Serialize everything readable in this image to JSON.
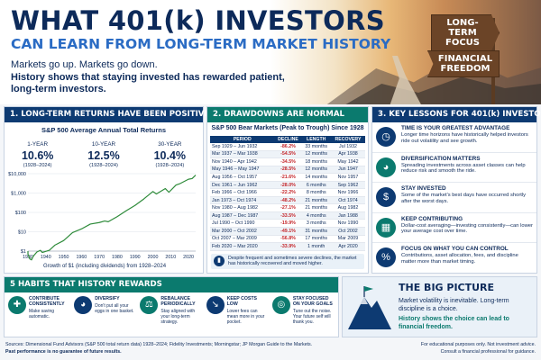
{
  "header": {
    "title": "WHAT 401(k) INVESTORS",
    "subtitle": "CAN LEARN FROM LONG-TERM MARKET HISTORY",
    "intro_line1": "Markets go up. Markets go down.",
    "intro_line2": "History shows that staying invested has rewarded patient, long-term investors.",
    "sign_top": "LONG-TERM FOCUS",
    "sign_bottom": "FINANCIAL FREEDOM"
  },
  "panel1": {
    "heading": "1. LONG-TERM RETURNS HAVE BEEN POSITIVE",
    "chart_title": "S&P 500 Average Annual Total Returns",
    "stats": [
      {
        "label": "1-YEAR",
        "value": "10.6%",
        "range": "(1928–2024)"
      },
      {
        "label": "10-YEAR",
        "value": "12.5%",
        "range": "(1928–2024)"
      },
      {
        "label": "30-YEAR",
        "value": "10.4%",
        "range": "(1928–2024)"
      }
    ],
    "footnote": "Growth of $1 (including dividends) from 1928–2024"
  },
  "chart_data": {
    "type": "line",
    "title": "",
    "xlabel": "",
    "ylabel": "",
    "log_scale": true,
    "xlim": [
      1930,
      2024
    ],
    "ylim": [
      1,
      10000
    ],
    "x_ticks": [
      "1930",
      "1940",
      "1950",
      "1960",
      "1970",
      "1980",
      "1990",
      "2000",
      "2010",
      "2020"
    ],
    "y_ticks": [
      "$1",
      "$10",
      "$100",
      "$1,000",
      "$10,000"
    ],
    "x": [
      1928,
      1929,
      1930,
      1931,
      1932,
      1933,
      1935,
      1937,
      1938,
      1942,
      1945,
      1950,
      1955,
      1960,
      1965,
      1970,
      1973,
      1975,
      1980,
      1985,
      1990,
      1995,
      2000,
      2002,
      2007,
      2009,
      2013,
      2015,
      2020,
      2022,
      2024
    ],
    "y": [
      1.0,
      0.9,
      0.7,
      0.4,
      0.35,
      0.55,
      0.9,
      1.1,
      0.85,
      1.1,
      2.0,
      3.5,
      9.0,
      14,
      25,
      30,
      36,
      33,
      60,
      120,
      230,
      500,
      1200,
      900,
      1700,
      1100,
      2600,
      3000,
      5200,
      5600,
      8500
    ],
    "color": "#2e8b3a",
    "grid": true
  },
  "panel2": {
    "heading": "2. DRAWDOWNS ARE NORMAL",
    "table_title": "S&P 500 Bear Markets (Peak to Trough) Since 1928",
    "columns": [
      "PERIOD",
      "DECLINE",
      "LENGTH",
      "RECOVERY"
    ],
    "rows": [
      {
        "period": "Sep 1929 – Jun 1932",
        "decline": "-86.2%",
        "length": "33 months",
        "recovery": "Jul 1932"
      },
      {
        "period": "Mar 1937 – Mar 1938",
        "decline": "-54.5%",
        "length": "12 months",
        "recovery": "Apr 1938"
      },
      {
        "period": "Nov 1940 – Apr 1942",
        "decline": "-34.5%",
        "length": "18 months",
        "recovery": "May 1942"
      },
      {
        "period": "May 1946 – May 1947",
        "decline": "-28.5%",
        "length": "12 months",
        "recovery": "Jun 1947"
      },
      {
        "period": "Aug 1956 – Oct 1957",
        "decline": "-21.6%",
        "length": "14 months",
        "recovery": "Nov 1957"
      },
      {
        "period": "Dec 1961 – Jun 1962",
        "decline": "-28.0%",
        "length": "6 months",
        "recovery": "Sep 1962"
      },
      {
        "period": "Feb 1966 – Oct 1966",
        "decline": "-22.2%",
        "length": "8 months",
        "recovery": "Nov 1966"
      },
      {
        "period": "Jan 1973 – Oct 1974",
        "decline": "-48.2%",
        "length": "21 months",
        "recovery": "Oct 1974"
      },
      {
        "period": "Nov 1980 – Aug 1982",
        "decline": "-27.1%",
        "length": "21 months",
        "recovery": "Aug 1982"
      },
      {
        "period": "Aug 1987 – Dec 1987",
        "decline": "-33.5%",
        "length": "4 months",
        "recovery": "Jan 1988"
      },
      {
        "period": "Jul 1990 – Oct 1990",
        "decline": "-19.9%",
        "length": "3 months",
        "recovery": "Nov 1990"
      },
      {
        "period": "Mar 2000 – Oct 2002",
        "decline": "-49.1%",
        "length": "31 months",
        "recovery": "Oct 2002"
      },
      {
        "period": "Oct 2007 – Mar 2009",
        "decline": "-56.8%",
        "length": "17 months",
        "recovery": "Mar 2009"
      },
      {
        "period": "Feb 2020 – Mar 2020",
        "decline": "-33.9%",
        "length": "1 month",
        "recovery": "Apr 2020"
      }
    ],
    "note": "Despite frequent and sometimes severe declines, the market has historically recovered and moved higher."
  },
  "panel3": {
    "heading": "3. KEY LESSONS FOR 401(k) INVESTORS",
    "lessons": [
      {
        "title": "TIME IS YOUR GREATEST ADVANTAGE",
        "body": "Longer time horizons have historically helped investors ride out volatility and see growth.",
        "icon": "clock-icon",
        "color": "#0d3a72",
        "glyph": "◷"
      },
      {
        "title": "DIVERSIFICATION MATTERS",
        "body": "Spreading investments across asset classes can help reduce risk and smooth the ride.",
        "icon": "pie-chart-icon",
        "color": "#0b7a6e",
        "glyph": "◕"
      },
      {
        "title": "STAY INVESTED",
        "body": "Some of the market's best days have occurred shortly after the worst days.",
        "icon": "dollar-icon",
        "color": "#0d3a72",
        "glyph": "$"
      },
      {
        "title": "KEEP CONTRIBUTING",
        "body": "Dollar-cost averaging—investing consistently—can lower your average cost over time.",
        "icon": "calendar-dollar-icon",
        "color": "#0b7a6e",
        "glyph": "▦"
      },
      {
        "title": "FOCUS ON WHAT YOU CAN CONTROL",
        "body": "Contributions, asset allocation, fees, and discipline matter more than market timing.",
        "icon": "percent-icon",
        "color": "#0d3a72",
        "glyph": "%"
      }
    ]
  },
  "habits": {
    "heading": "5 HABITS THAT HISTORY REWARDS",
    "items": [
      {
        "title": "CONTRIBUTE CONSISTENTLY",
        "body": "Make saving automatic.",
        "icon": "piggy-bank-icon",
        "color": "#0b7a6e",
        "glyph": "✚"
      },
      {
        "title": "DIVERSIFY",
        "body": "Don't put all your eggs in one basket.",
        "icon": "pie-chart-icon",
        "color": "#0d3a72",
        "glyph": "◕"
      },
      {
        "title": "REBALANCE PERIODICALLY",
        "body": "Stay aligned with your long-term strategy.",
        "icon": "scale-icon",
        "color": "#0b7a6e",
        "glyph": "⚖"
      },
      {
        "title": "KEEP COSTS LOW",
        "body": "Lower fees can mean more in your pocket.",
        "icon": "down-trend-icon",
        "color": "#0d3a72",
        "glyph": "↘"
      },
      {
        "title": "STAY FOCUSED ON YOUR GOALS",
        "body": "Tune out the noise. Your future self will thank you.",
        "icon": "target-icon",
        "color": "#0b7a6e",
        "glyph": "◎"
      }
    ]
  },
  "big_picture": {
    "heading": "THE BIG PICTURE",
    "line1": "Market volatility is inevitable. Long-term discipline is a choice.",
    "line2": "History shows the choice can lead to financial freedom."
  },
  "footer": {
    "sources": "Sources: Dimensional Fund Advisors (S&P 500 total return data) 1928–2024; Fidelity Investments; Morningstar; JP Morgan Guide to the Markets.",
    "disclaimer": "Past performance is no guarantee of future results.",
    "note1": "For educational purposes only. Not investment advice.",
    "note2": "Consult a financial professional for guidance."
  }
}
